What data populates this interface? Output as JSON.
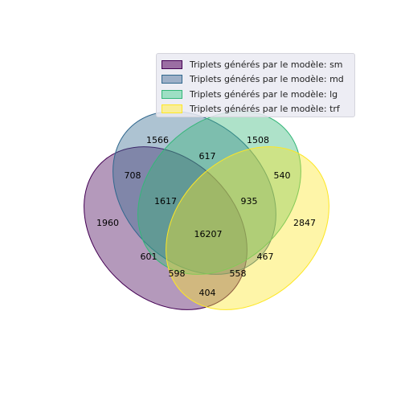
{
  "legend": [
    {
      "label": "Triplets générés par le modèle: sm",
      "fill": "#9b6ea3",
      "stroke": "#440154"
    },
    {
      "label": "Triplets générés par le modèle: md",
      "fill": "#9eb0c8",
      "stroke": "#31688e"
    },
    {
      "label": "Triplets générés par le modèle: lg",
      "fill": "#9edfc4",
      "stroke": "#35b779"
    },
    {
      "label": "Triplets générés par le modèle: trf",
      "fill": "#f9ee98",
      "stroke": "#fde725"
    }
  ],
  "sets": [
    {
      "name": "sm",
      "color": "#440154"
    },
    {
      "name": "md",
      "color": "#31688e"
    },
    {
      "name": "lg",
      "color": "#35b779"
    },
    {
      "name": "trf",
      "color": "#fde725"
    }
  ],
  "regions": {
    "sm_only": "1960",
    "md_only": "1566",
    "lg_only": "1508",
    "trf_only": "2847",
    "sm_md": "708",
    "md_lg": "617",
    "lg_trf": "540",
    "sm_md_lg": "1617",
    "md_lg_trf": "935",
    "all": "16207",
    "sm_md_trf": "601",
    "sm_trf": "404",
    "sm_lg_trf": "467",
    "sm_md_lg_trf_lower_left": "598",
    "sm_md_lg_trf_lower_right": "558"
  }
}
